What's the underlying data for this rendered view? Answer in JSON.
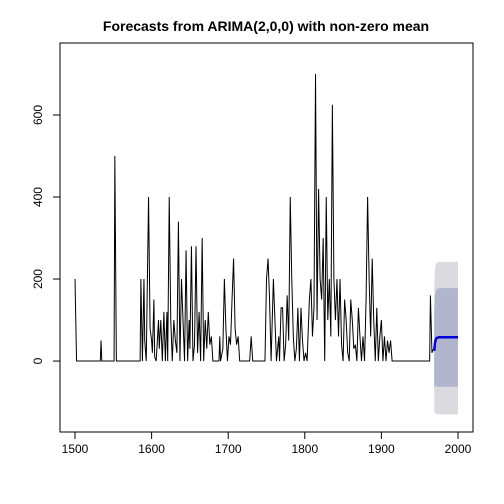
{
  "chart_data": {
    "type": "line",
    "title": "Forecasts from ARIMA(2,0,0) with non-zero mean",
    "color": "#000000",
    "x": [
      1500,
      1502,
      1533,
      1534,
      1535,
      1551,
      1552,
      1554,
      1585,
      1586,
      1588,
      1590,
      1591,
      1593,
      1596,
      1598,
      1600,
      1601,
      1603,
      1604,
      1606,
      1609,
      1610,
      1612,
      1614,
      1616,
      1618,
      1620,
      1621,
      1623,
      1625,
      1627,
      1629,
      1631,
      1633,
      1635,
      1637,
      1639,
      1641,
      1643,
      1645,
      1647,
      1649,
      1650,
      1652,
      1654,
      1656,
      1658,
      1660,
      1662,
      1664,
      1666,
      1668,
      1670,
      1672,
      1674,
      1676,
      1678,
      1680,
      1688,
      1689,
      1690,
      1693,
      1695,
      1697,
      1699,
      1701,
      1703,
      1705,
      1707,
      1709,
      1711,
      1713,
      1715,
      1728,
      1730,
      1732,
      1748,
      1750,
      1752,
      1754,
      1756,
      1759,
      1761,
      1763,
      1766,
      1767,
      1769,
      1771,
      1773,
      1775,
      1777,
      1779,
      1781,
      1783,
      1785,
      1787,
      1789,
      1791,
      1793,
      1795,
      1797,
      1799,
      1801,
      1803,
      1806,
      1808,
      1810,
      1812,
      1814,
      1816,
      1818,
      1820,
      1822,
      1824,
      1826,
      1828,
      1830,
      1832,
      1834,
      1836,
      1838,
      1840,
      1842,
      1844,
      1846,
      1848,
      1850,
      1852,
      1854,
      1856,
      1858,
      1860,
      1862,
      1864,
      1866,
      1868,
      1870,
      1872,
      1874,
      1876,
      1878,
      1880,
      1882,
      1884,
      1886,
      1888,
      1890,
      1892,
      1894,
      1896,
      1898,
      1900,
      1902,
      1904,
      1906,
      1908,
      1910,
      1912,
      1914,
      1963,
      1964,
      1966,
      1968
    ],
    "values": [
      200,
      0,
      0,
      50,
      0,
      0,
      500,
      0,
      0,
      200,
      0,
      200,
      50,
      0,
      400,
      80,
      50,
      20,
      150,
      10,
      0,
      100,
      30,
      100,
      0,
      120,
      0,
      120,
      0,
      400,
      100,
      0,
      100,
      50,
      20,
      340,
      0,
      200,
      100,
      0,
      270,
      0,
      100,
      30,
      280,
      0,
      40,
      280,
      20,
      120,
      0,
      300,
      0,
      100,
      30,
      120,
      40,
      60,
      0,
      0,
      60,
      0,
      30,
      200,
      80,
      0,
      60,
      40,
      150,
      250,
      80,
      40,
      60,
      0,
      0,
      60,
      0,
      0,
      200,
      250,
      150,
      0,
      200,
      100,
      0,
      60,
      0,
      130,
      130,
      0,
      40,
      160,
      50,
      400,
      200,
      60,
      0,
      30,
      130,
      0,
      130,
      50,
      0,
      20,
      0,
      150,
      200,
      60,
      130,
      700,
      100,
      420,
      200,
      150,
      300,
      0,
      400,
      100,
      200,
      60,
      625,
      200,
      100,
      200,
      60,
      200,
      40,
      0,
      150,
      100,
      20,
      0,
      150,
      100,
      30,
      40,
      0,
      130,
      60,
      0,
      60,
      0,
      150,
      400,
      200,
      60,
      250,
      100,
      0,
      130,
      0,
      60,
      100,
      0,
      60,
      0,
      50,
      20,
      50,
      0,
      0,
      160,
      20,
      30
    ],
    "forecast": {
      "x": [
        1969,
        1970,
        1971,
        1972,
        1975,
        2000
      ],
      "mean": [
        25,
        45,
        52,
        56,
        58,
        58
      ],
      "lower80": [
        -70,
        -60,
        -60,
        -62,
        -63,
        -63
      ],
      "upper80": [
        120,
        160,
        170,
        175,
        178,
        178
      ],
      "lower95": [
        -125,
        -125,
        -128,
        -130,
        -130,
        -130
      ],
      "upper95": [
        175,
        225,
        235,
        240,
        242,
        242
      ],
      "color": "#0000dd",
      "color80": "#b1b5ce",
      "color95": "#dbdbdf"
    },
    "xlim": [
      1480.4,
      2019.6
    ],
    "ylim": [
      -173,
      775.6
    ],
    "xticks": [
      1500,
      1600,
      1700,
      1800,
      1900,
      2000
    ],
    "yticks": [
      0,
      200,
      400,
      600
    ]
  }
}
